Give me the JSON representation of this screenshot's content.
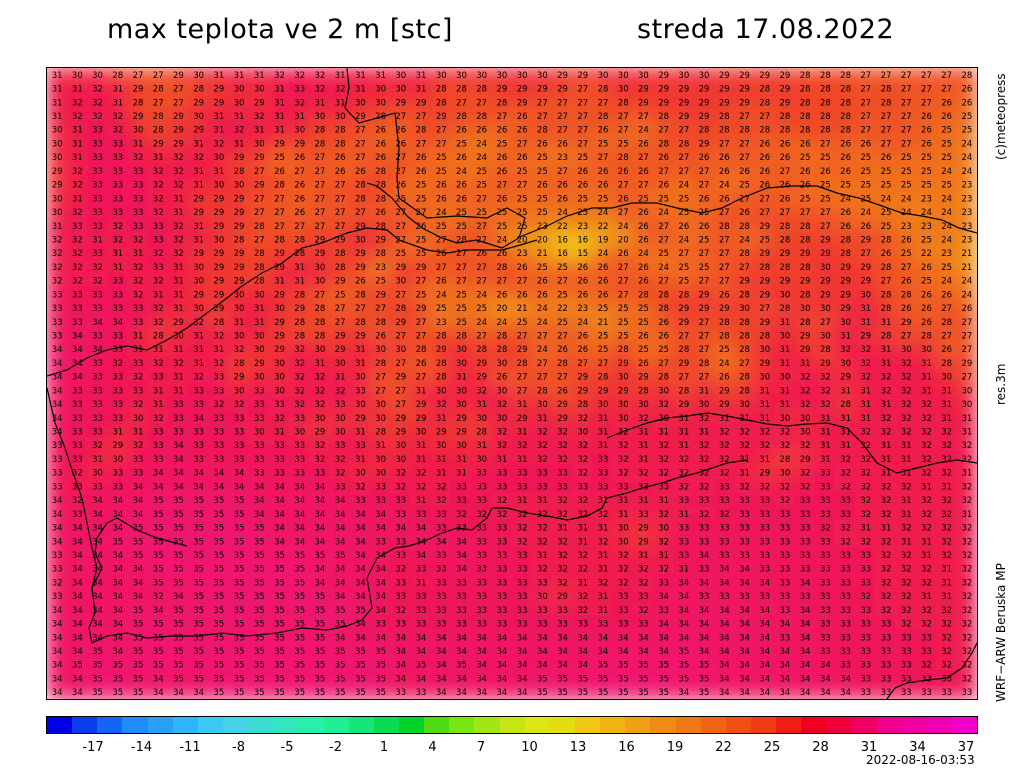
{
  "title": {
    "parameter": "max teplota ve 2 m [stc]",
    "date": "streda 17.08.2022"
  },
  "side_labels": {
    "copyright": "(c)meteopress",
    "resolution": "res.3m",
    "model": "WRF−ARW Beruska MP"
  },
  "timestamp": "2022-08-16-03:53",
  "colorbar": {
    "ticks": [
      "-17",
      "-14",
      "-11",
      "-8",
      "-5",
      "-2",
      "1",
      "4",
      "7",
      "10",
      "13",
      "16",
      "19",
      "22",
      "25",
      "28",
      "31",
      "34",
      "37"
    ],
    "colors": [
      "#0000e6",
      "#0a3cf0",
      "#1464f5",
      "#1e8cfa",
      "#28a0fa",
      "#32b4fa",
      "#3cc8f5",
      "#46d2e6",
      "#3cdcd2",
      "#32e6be",
      "#28f0aa",
      "#1ef096",
      "#14e678",
      "#0adc50",
      "#00d228",
      "#50dc14",
      "#78e614",
      "#a0e614",
      "#c8e614",
      "#dce614",
      "#e6dc14",
      "#f0c814",
      "#f0b414",
      "#f0a014",
      "#f08c14",
      "#f07814",
      "#f06414",
      "#f05014",
      "#f03c14",
      "#f01e14",
      "#f0001e",
      "#f0003c",
      "#f00064",
      "#f0008c",
      "#f000a0",
      "#f000b4",
      "#f000c8"
    ]
  },
  "map_grid": {
    "rows": [
      "31 30 30 28 27 27 29 30 31 31 31 32 32 32 31 31 31 30 31 30 30 30 30 30 30 29 29 30 30 30 29 30 30 29 29 29 29 28 28 28 27 27 27 27 27 28",
      "31 31 32 31 29 28 27 28 29 30 30 31 33 32 32 31 30 30 31 28 28 28 29 29 29 29 27 28 30 29 29 29 29 29 29 28 29 28 28 28 27 28 27 27 27 26",
      "31 32 32 31 28 27 27 29 29 30 29 31 32 31 31 30 30 29 29 28 27 27 28 29 27 27 27 27 28 29 29 29 29 29 29 28 29 28 28 28 27 28 27 27 26 26",
      "31 32 32 32 29 28 29 30 31 31 32 31 31 30 30 29 28 27 27 29 28 28 27 26 27 27 27 28 27 27 28 29 29 28 27 27 28 28 28 28 27 27 27 26 26 25",
      "30 31 33 32 30 28 29 29 31 32 31 31 30 28 28 27 26 26 28 27 26 26 26 26 28 27 27 26 27 24 27 27 28 28 28 28 28 28 28 28 27 27 27 26 25 25",
      "30 31 33 33 31 29 29 31 32 31 30 29 29 28 28 27 26 26 27 27 25 24 25 27 26 26 27 25 25 26 28 28 29 27 27 26 26 26 27 26 26 27 27 26 25 24",
      "30 31 33 33 32 31 32 32 30 29 29 25 26 27 26 27 26 27 26 25 26 24 26 26 25 23 25 27 28 27 26 27 26 26 27 26 26 25 25 26 25 26 25 25 25 24",
      "29 32 33 33 33 32 32 31 31 28 27 26 27 27 26 26 28 27 26 25 24 25 26 25 25 27 26 26 26 26 27 27 27 26 26 26 27 26 26 26 25 25 25 25 24 24",
      "29 32 33 33 33 32 32 31 30 30 29 28 26 27 27 28 28 26 25 26 26 25 27 27 26 26 26 26 27 27 26 24 27 24 25 26 26 26 25 25 25 25 25 25 25 23",
      "30 31 33 33 33 32 31 29 29 29 27 27 26 27 27 28 28 25 25 26 26 27 26 25 25 26 25 25 26 25 25 25 26 26 27 27 26 25 25 24 25 24 24 23 24 23",
      "30 32 33 33 33 32 31 29 29 29 27 27 26 27 27 27 26 27 27 24 25 25 25 25 25 24 25 24 27 26 24 25 25 27 26 27 27 27 27 26 24 25 24 24 24 23",
      "31 33 33 32 33 33 32 31 29 29 28 27 27 27 27 29 28 27 26 25 25 27 25 25 23 22 23 22 24 26 27 26 26 28 28 29 28 28 27 26 26 25 23 23 24 23",
      "32 32 31 32 32 33 32 31 30 28 27 28 28 29 29 30 29 27 25 27 28 27 24 20 20 16 16 19 20 26 27 24 25 27 24 25 28 28 29 28 29 28 26 25 24 23",
      "32 32 33 31 31 32 32 29 29 29 28 29 28 29 28 29 28 25 25 26 27 26 26 23 21 16 15 24 26 24 25 27 27 27 28 29 29 29 29 28 27 26 25 22 23 21",
      "32 32 32 31 32 33 31 30 29 29 28 29 31 30 28 29 23 29 29 27 27 27 28 26 25 25 26 26 27 26 24 25 25 27 27 28 28 28 30 29 29 28 27 26 25 21",
      "32 32 32 33 32 32 31 30 29 29 28 31 31 30 29 26 25 30 27 26 27 27 27 27 26 27 26 26 27 26 27 25 27 27 29 29 29 29 29 29 29 27 26 25 24 24",
      "33 33 33 33 32 31 31 29 29 30 30 29 28 27 25 28 29 27 25 24 25 24 26 26 26 25 26 26 27 28 28 28 29 26 28 29 30 28 29 29 30 28 28 26 26 24",
      "33 33 33 33 33 32 31 30 29 30 31 30 29 28 27 27 27 28 29 25 25 25 20 21 24 22 23 25 25 25 28 29 29 29 30 27 28 30 30 29 31 28 26 26 27 26",
      "33 33 34 34 33 32 29 32 28 31 31 29 28 28 27 28 28 29 27 23 25 24 24 25 24 25 24 21 25 25 26 29 27 28 28 29 31 28 27 30 31 31 29 26 28 27",
      "33 34 33 33 31 28 30 31 32 30 30 29 28 28 29 29 26 27 27 28 28 27 28 27 27 27 26 25 25 26 26 27 27 28 28 28 30 29 30 31 29 28 27 28 27 27",
      "34 34 34 33 31 31 31 31 31 32 30 29 32 30 29 31 30 30 28 29 30 28 28 29 24 26 26 25 28 25 25 28 27 25 28 30 31 29 28 32 32 31 30 30 26 27",
      "34 34 33 32 33 32 32 31 32 28 29 30 32 31 30 31 28 27 26 28 30 29 30 28 27 28 27 27 29 26 27 29 28 24 27 29 31 31 29 30 32 31 32 31 28 29",
      "34 34 33 33 32 33 31 32 33 29 30 30 32 32 31 30 27 29 27 28 31 29 26 27 27 27 29 28 30 29 28 27 27 26 28 30 30 32 32 29 32 32 32 31 30 27",
      "34 33 33 33 33 31 31 33 33 30 33 30 32 32 32 33 27 27 31 30 30 32 30 27 28 26 29 29 29 28 30 28 31 29 28 31 31 32 32 31 31 32 32 31 31 30",
      "34 33 33 33 32 31 33 33 32 32 33 33 32 32 33 30 30 27 29 32 30 31 32 31 30 29 28 30 30 30 32 29 30 29 30 31 31 32 32 28 31 31 32 32 31 30",
      "34 33 33 33 30 32 33 34 33 33 33 32 33 30 30 29 30 29 29 31 29 30 30 29 31 29 32 31 30 32 30 31 32 31 31 31 30 30 31 31 31 32 32 32 31 31",
      "34 33 33 31 31 33 33 33 33 33 30 31 30 29 30 31 28 29 30 29 29 28 32 31 32 32 30 31 32 31 31 31 31 32 32 32 32 30 31 31 32 32 32 32 32 31",
      "33 33 32 29 32 33 34 33 33 33 33 33 33 32 33 33 31 30 31 30 30 31 32 32 32 32 32 31 32 31 32 31 32 32 32 32 32 32 31 31 32 31 31 32 32 32",
      "33 33 31 30 33 33 34 33 33 33 33 33 33 32 32 31 30 30 31 31 31 30 31 31 32 32 32 33 32 31 32 32 32 32 31 31 28 29 31 32 32 31 31 32 32 32",
      "33 32 30 33 33 34 34 34 34 34 33 33 33 33 32 30 30 32 32 31 31 33 33 33 33 33 32 33 32 32 32 32 32 32 31 29 30 32 33 32 32 31 31 32 32 31",
      "33 33 33 33 34 34 34 34 34 34 34 34 34 34 33 32 33 32 32 32 33 33 33 33 33 33 33 33 33 33 33 32 32 33 32 32 32 32 33 32 32 32 32 31 31 32",
      "34 32 34 34 34 35 35 35 35 35 34 34 34 34 34 33 33 33 31 32 33 33 32 31 31 32 32 31 31 31 31 33 33 33 33 33 32 33 33 33 32 32 31 32 32 32",
      "34 33 34 34 34 35 35 35 35 35 34 34 34 34 34 34 34 33 33 33 32 32 32 32 32 32 32 32 31 33 32 31 32 32 33 33 33 33 33 33 32 32 31 32 32 31",
      "34 34 34 34 35 35 35 35 35 35 35 34 34 34 34 34 34 34 34 33 33 33 33 32 32 31 31 31 30 29 30 33 33 33 33 33 33 33 32 32 31 31 32 32 32 32",
      "34 34 34 35 35 35 35 35 35 35 35 34 34 34 34 34 33 33 34 34 34 33 33 32 32 32 31 32 30 29 32 33 33 33 33 33 33 33 33 32 32 32 31 31 32 32",
      "33 34 34 34 35 35 35 35 35 35 35 35 35 35 35 34 34 33 34 33 34 33 33 33 31 32 32 31 32 31 31 33 34 33 33 33 33 33 33 33 33 32 32 31 32 32",
      "33 34 34 34 34 35 35 35 35 35 35 35 35 34 34 34 34 32 33 33 34 33 33 33 32 32 32 31 32 32 32 31 33 34 34 33 33 33 33 33 33 32 32 32 31 32",
      "32 34 34 34 34 35 35 35 35 35 35 35 35 34 34 34 34 33 31 33 33 33 33 33 33 32 31 32 32 32 33 34 34 34 34 34 33 34 33 33 33 32 32 32 31 32",
      "33 34 34 34 34 32 34 35 35 35 35 35 35 35 34 34 34 33 33 33 33 33 33 33 30 29 32 31 33 33 34 34 33 33 33 33 33 33 33 33 32 32 32 31 31 32",
      "34 34 34 34 35 34 35 35 35 35 35 35 35 35 35 35 34 32 33 33 33 33 33 33 33 33 32 31 33 32 33 34 34 34 34 34 33 34 33 33 33 32 32 32 32 32",
      "34 34 34 34 35 35 35 35 35 35 35 35 35 35 35 34 33 33 33 33 33 33 33 33 33 33 33 33 33 33 34 34 34 34 34 34 34 34 33 33 33 33 32 32 32 32",
      "34 34 34 34 35 35 35 35 35 35 35 35 35 35 34 34 34 34 34 34 34 34 34 34 34 34 34 34 34 34 34 34 34 34 34 34 33 34 33 33 33 33 33 33 32 32",
      "34 34 35 34 35 35 35 35 35 35 35 35 35 35 35 35 35 34 34 34 34 34 34 34 34 34 34 34 34 34 34 35 34 34 34 34 34 34 33 33 33 33 33 33 32 32",
      "34 35 35 35 35 35 35 35 35 35 35 35 35 35 35 35 35 34 35 34 35 34 34 34 34 34 34 35 35 35 35 35 35 34 34 34 34 34 34 33 33 33 33 32 32 32",
      "34 34 35 35 35 34 35 35 35 35 35 35 35 35 35 35 35 34 34 34 34 34 34 34 35 35 35 35 35 35 35 35 35 34 34 34 34 34 34 34 33 33 33 33 33 32",
      "34 34 35 35 35 34 34 34 35 35 35 35 35 35 35 35 35 33 33 34 34 34 34 34 35 35 35 35 35 35 35 34 35 34 34 34 34 34 34 34 33 33 33 33 33 33"
    ]
  }
}
